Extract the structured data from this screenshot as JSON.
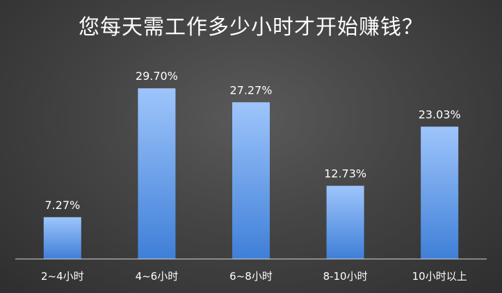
{
  "chart_data": {
    "type": "bar",
    "title": "您每天需工作多少小时才开始赚钱？",
    "categories": [
      "2~4小时",
      "4~6小时",
      "6~8小时",
      "8-10小时",
      "10小时以上"
    ],
    "values": [
      7.27,
      29.7,
      27.27,
      12.73,
      23.03
    ],
    "data_labels": [
      "7.27%",
      "29.70%",
      "27.27%",
      "12.73%",
      "23.03%"
    ],
    "ylim": [
      0,
      32.5
    ],
    "grid": false,
    "legend": "none",
    "colors": {
      "bar_top": "#9ec5fb",
      "bar_bottom": "#3f7fd8",
      "axis": "#d9d9d9",
      "text": "#ffffff"
    }
  }
}
